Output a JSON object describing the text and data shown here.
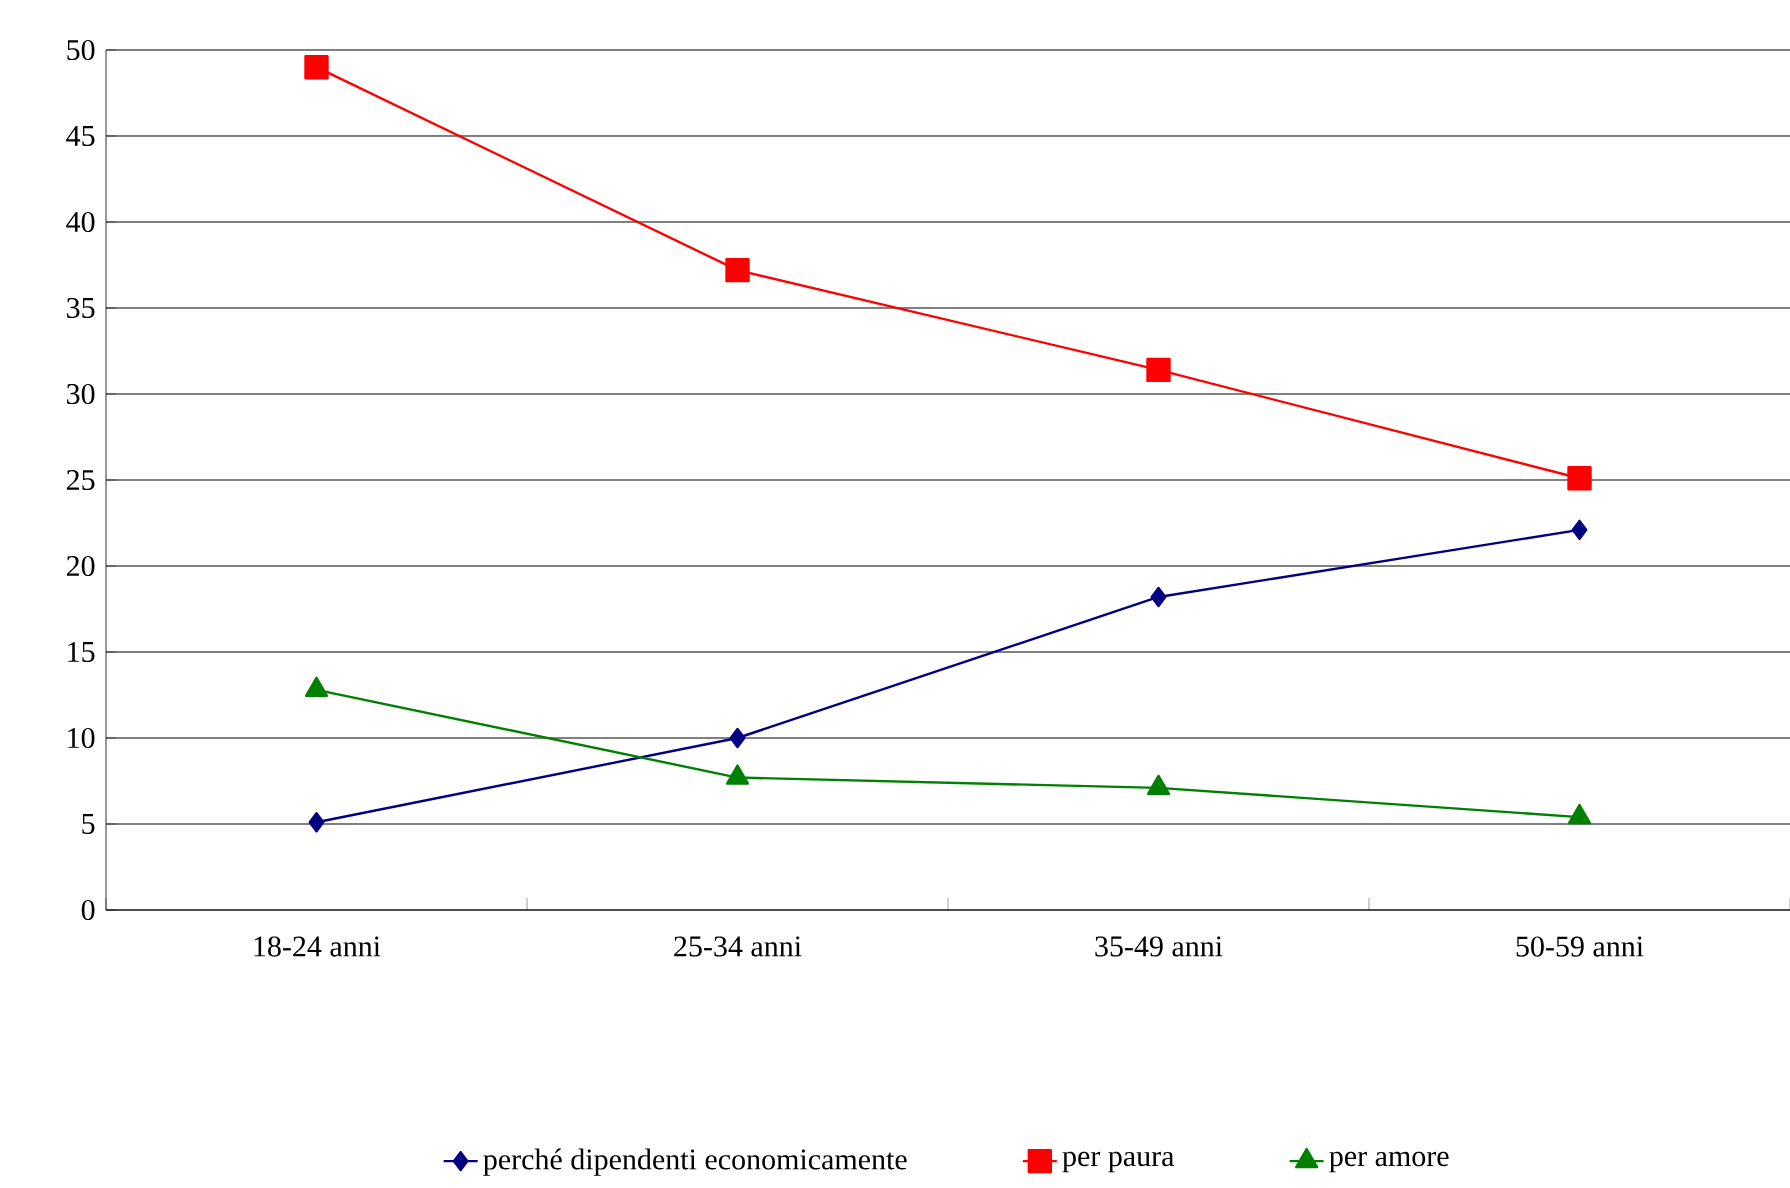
{
  "chart_data": {
    "type": "line",
    "categories": [
      "18-24 anni",
      "25-34 anni",
      "35-49 anni",
      "50-59 anni"
    ],
    "series": [
      {
        "name": "perché dipendenti economicamente",
        "color": "#000080",
        "marker": "diamond",
        "values": [
          5.1,
          10.0,
          18.2,
          22.1
        ]
      },
      {
        "name": "per paura",
        "color": "#ff0000",
        "marker": "square",
        "values": [
          49.0,
          37.2,
          31.4,
          25.1
        ]
      },
      {
        "name": "per amore",
        "color": "#008000",
        "marker": "triangle",
        "values": [
          12.8,
          7.7,
          7.1,
          5.4
        ]
      }
    ],
    "ylim": [
      0,
      50
    ],
    "yticks": [
      0,
      5,
      10,
      15,
      20,
      25,
      30,
      35,
      40,
      45,
      50
    ],
    "grid": "y",
    "legend": "bottom"
  }
}
